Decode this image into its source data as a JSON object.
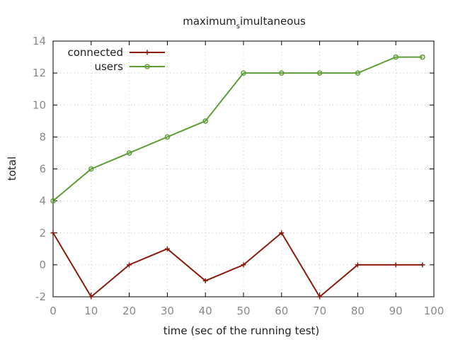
{
  "chart_data": {
    "type": "line",
    "title_main": "maximum",
    "title_sub": "s",
    "title_rest": "imultaneous",
    "xlabel": "time (sec of the running test)",
    "ylabel": "total",
    "xlim": [
      0,
      100
    ],
    "ylim": [
      -2,
      14
    ],
    "xticks": [
      0,
      10,
      20,
      30,
      40,
      50,
      60,
      70,
      80,
      90,
      100
    ],
    "yticks": [
      -2,
      0,
      2,
      4,
      6,
      8,
      10,
      12,
      14
    ],
    "grid": true,
    "legend_position": "top-left",
    "series": [
      {
        "name": "connected",
        "color": "#8b1a0e",
        "marker": "plus",
        "x": [
          0,
          10,
          20,
          30,
          40,
          50,
          60,
          70,
          80,
          90,
          97
        ],
        "y": [
          2,
          -2,
          0,
          1,
          -1,
          0,
          2,
          -2,
          0,
          0,
          0
        ]
      },
      {
        "name": "users",
        "color": "#5e9c36",
        "marker": "circle",
        "x": [
          0,
          10,
          20,
          30,
          40,
          50,
          60,
          70,
          80,
          90,
          97
        ],
        "y": [
          4,
          6,
          7,
          8,
          9,
          12,
          12,
          12,
          12,
          13,
          13
        ]
      }
    ]
  }
}
